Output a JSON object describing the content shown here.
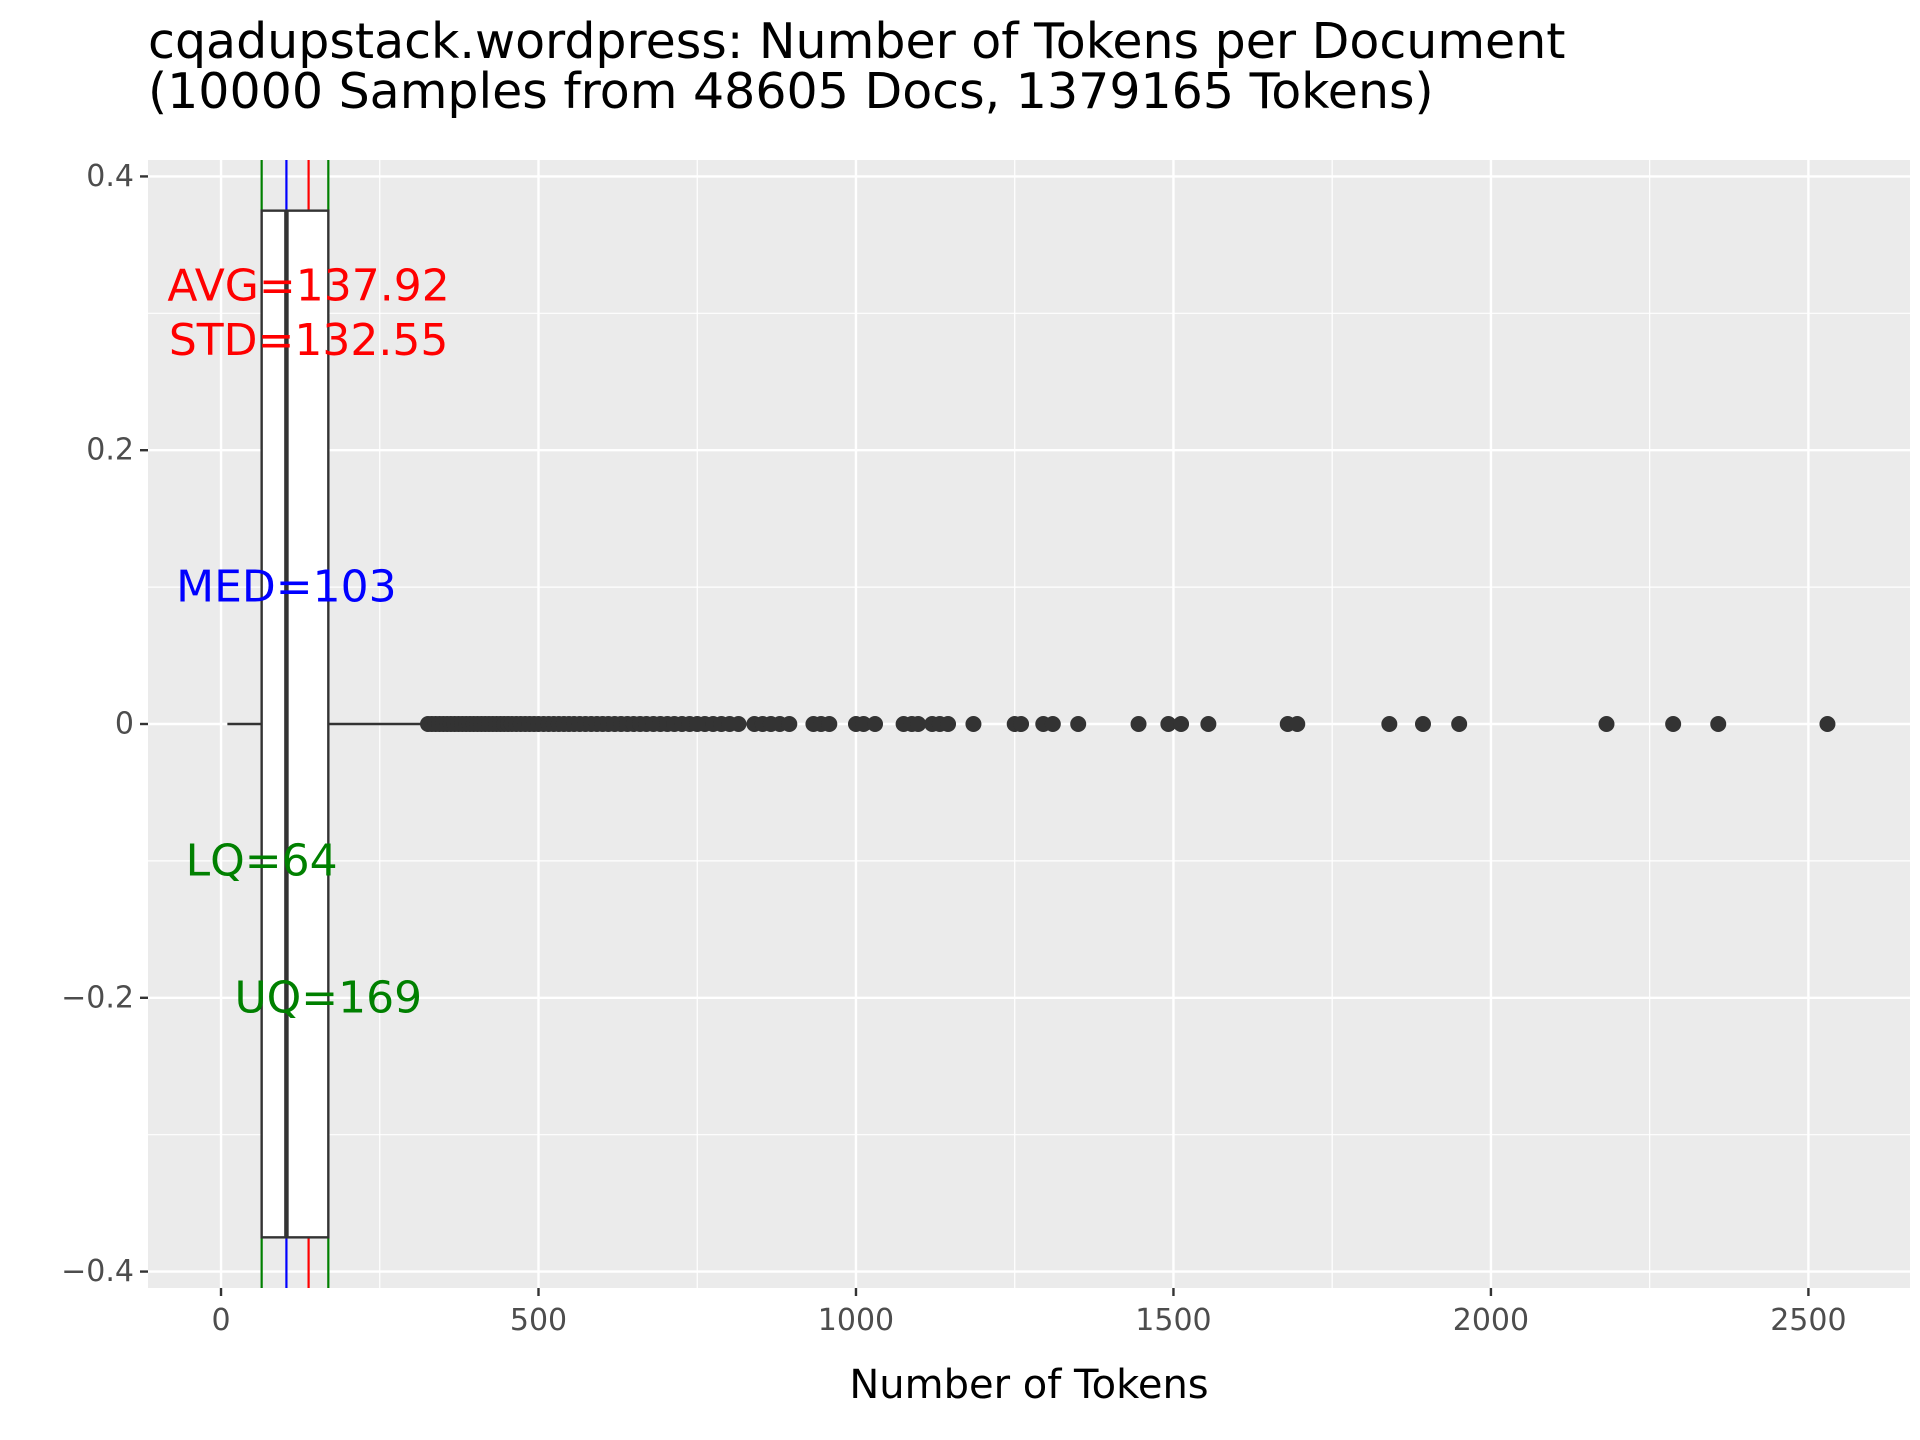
{
  "chart_data": {
    "type": "box",
    "title": "cqadupstack.wordpress: Number of Tokens per Document",
    "subtitle": "(10000 Samples from 48605 Docs, 1379165 Tokens)",
    "xlabel": "Number of Tokens",
    "ylabel": "",
    "xlim": [
      -115,
      2660
    ],
    "ylim": [
      -0.412,
      0.412
    ],
    "x_ticks": [
      0,
      500,
      1000,
      1500,
      2000,
      2500
    ],
    "x_tick_labels": [
      "0",
      "500",
      "1000",
      "1500",
      "2000",
      "2500"
    ],
    "y_ticks": [
      -0.4,
      -0.2,
      0,
      0.2,
      0.4
    ],
    "y_tick_labels": [
      "−0.4",
      "−0.2",
      "0",
      "0.2",
      "0.4"
    ],
    "grid": true,
    "box": {
      "y_center": 0,
      "half_height": 0.375,
      "whisker_low": 10,
      "q1": 64,
      "median": 103,
      "q3": 169,
      "whisker_high": 326
    },
    "outliers": [
      326,
      332,
      338,
      344,
      350,
      356,
      362,
      368,
      374,
      380,
      386,
      392,
      398,
      404,
      410,
      416,
      422,
      428,
      434,
      440,
      446,
      452,
      458,
      465,
      472,
      479,
      486,
      493,
      500,
      508,
      516,
      524,
      532,
      540,
      548,
      556,
      565,
      574,
      583,
      592,
      601,
      610,
      620,
      630,
      640,
      650,
      660,
      670,
      681,
      692,
      703,
      714,
      726,
      738,
      750,
      762,
      775,
      788,
      801,
      815,
      840,
      853,
      866,
      880,
      895,
      933,
      945,
      958,
      1000,
      1012,
      1030,
      1075,
      1088,
      1098,
      1120,
      1132,
      1145,
      1185,
      1250,
      1260,
      1295,
      1310,
      1350,
      1445,
      1492,
      1512,
      1555,
      1680,
      1695,
      1840,
      1893,
      1950,
      2182,
      2287,
      2358,
      2530
    ],
    "reference_lines": [
      {
        "name": "LQ",
        "value": 64,
        "color": "#008000"
      },
      {
        "name": "MED",
        "value": 103,
        "color": "#0000ff"
      },
      {
        "name": "AVG",
        "value": 137.92,
        "color": "#ff0000"
      },
      {
        "name": "UQ",
        "value": 169,
        "color": "#008000"
      }
    ],
    "annotations": [
      {
        "text": "AVG=137.92",
        "x": 137.92,
        "y": 0.32,
        "color": "#ff0000"
      },
      {
        "text": "STD=132.55",
        "x": 137.92,
        "y": 0.28,
        "color": "#ff0000"
      },
      {
        "text": "MED=103",
        "x": 103,
        "y": 0.1,
        "color": "#0000ff"
      },
      {
        "text": "LQ=64",
        "x": 64,
        "y": -0.1,
        "color": "#008000"
      },
      {
        "text": "UQ=169",
        "x": 169,
        "y": -0.2,
        "color": "#008000"
      }
    ]
  }
}
